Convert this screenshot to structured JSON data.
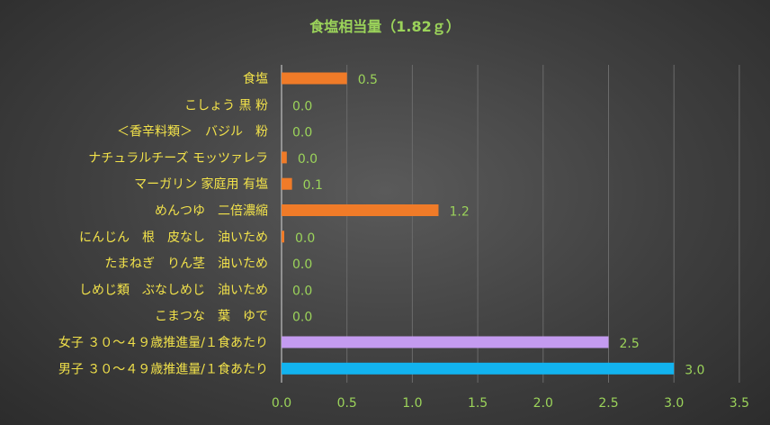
{
  "chart_data": {
    "type": "bar",
    "orientation": "horizontal",
    "title": "食塩相当量（1.82ｇ）",
    "xlabel": "",
    "ylabel": "",
    "xlim": [
      0,
      3.5
    ],
    "xticks": [
      "0.0",
      "0.5",
      "1.0",
      "1.5",
      "2.0",
      "2.5",
      "3.0",
      "3.5"
    ],
    "grid": true,
    "legend": "none",
    "categories": [
      "食塩",
      "こしょう 黒 粉",
      "＜香辛料類＞　バジル　粉",
      "ナチュラルチーズ モッツァレラ",
      "マーガリン 家庭用 有塩",
      "めんつゆ　二倍濃縮",
      "にんじん　根　皮なし　油いため",
      "たまねぎ　りん茎　油いため",
      "しめじ類　ぶなしめじ　油いため",
      "こまつな　葉　ゆで",
      "女子 ３０～４９歳推進量/１食あたり",
      "男子 ３０～４９歳推進量/１食あたり"
    ],
    "values": [
      0.5,
      0.0,
      0.0,
      0.04,
      0.08,
      1.2,
      0.02,
      0.0,
      0.0,
      0.0,
      2.5,
      3.0
    ],
    "data_labels": [
      "0.5",
      "0.0",
      "0.0",
      "0.0",
      "0.1",
      "1.2",
      "0.0",
      "0.0",
      "0.0",
      "0.0",
      "2.5",
      "3.0"
    ],
    "bar_colors": [
      "#f07b28",
      "#f07b28",
      "#f07b28",
      "#f07b28",
      "#f07b28",
      "#f07b28",
      "#f07b28",
      "#f07b28",
      "#f07b28",
      "#f07b28",
      "#c49bf0",
      "#12b3ef"
    ]
  }
}
